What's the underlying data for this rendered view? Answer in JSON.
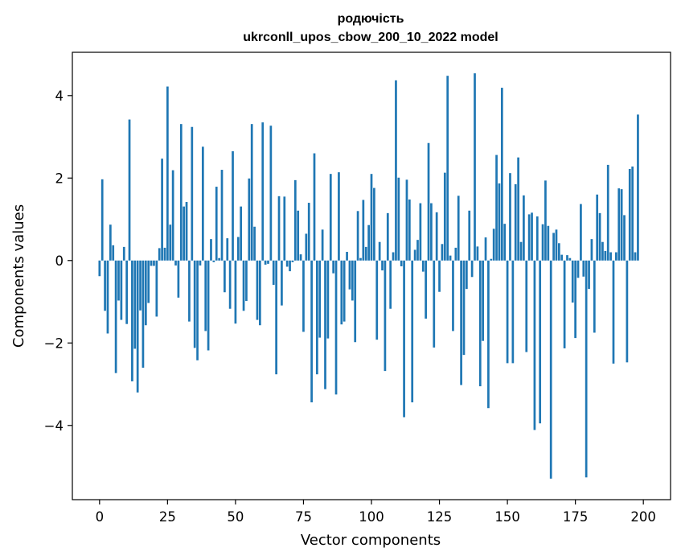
{
  "chart_data": {
    "type": "bar",
    "title_line1": "родючість",
    "title_line2": "ukrconll_upos_cbow_200_10_2022 model",
    "xlabel": "Vector components",
    "ylabel": "Components values",
    "xlim": [
      -10,
      210
    ],
    "ylim": [
      -5.8,
      5.05
    ],
    "xticks": [
      0,
      25,
      50,
      75,
      100,
      125,
      150,
      175,
      200
    ],
    "xtick_labels": [
      "0",
      "25",
      "50",
      "75",
      "100",
      "125",
      "150",
      "175",
      "200"
    ],
    "yticks": [
      -4,
      -2,
      0,
      2,
      4
    ],
    "ytick_labels": [
      "−4",
      "−2",
      "0",
      "2",
      "4"
    ],
    "bar_color": "#1f77b4",
    "values": [
      -0.38,
      1.97,
      -1.22,
      -1.77,
      0.87,
      0.37,
      -2.73,
      -0.97,
      -1.44,
      0.33,
      -1.54,
      3.42,
      -2.93,
      -2.14,
      -3.2,
      -1.21,
      -2.6,
      -1.57,
      -1.03,
      -0.13,
      -0.13,
      -1.36,
      0.3,
      2.47,
      0.31,
      4.22,
      0.87,
      2.19,
      -0.12,
      -0.9,
      3.31,
      1.31,
      1.42,
      -1.48,
      3.24,
      -2.12,
      -2.42,
      -0.12,
      2.76,
      -1.71,
      -2.18,
      0.52,
      -0.04,
      1.79,
      0.06,
      2.2,
      -0.77,
      0.54,
      -1.17,
      2.65,
      -1.53,
      0.57,
      1.31,
      -1.22,
      -0.98,
      1.99,
      3.31,
      0.82,
      -1.44,
      -1.57,
      3.35,
      -0.1,
      -0.08,
      3.27,
      -0.59,
      -2.76,
      1.56,
      -1.09,
      1.55,
      -0.15,
      -0.26,
      -0.04,
      1.95,
      1.21,
      0.15,
      -1.73,
      0.65,
      1.4,
      -3.44,
      2.6,
      -2.76,
      -1.87,
      0.75,
      -3.12,
      -1.89,
      2.1,
      -0.31,
      -3.25,
      2.14,
      -1.55,
      -1.48,
      0.21,
      -0.7,
      -0.97,
      -1.98,
      1.2,
      0.06,
      1.47,
      0.33,
      0.86,
      2.1,
      1.76,
      -1.92,
      0.45,
      -0.24,
      -2.68,
      1.15,
      -1.17,
      0.2,
      4.37,
      2.01,
      -0.14,
      -3.8,
      1.96,
      1.48,
      -3.44,
      0.26,
      0.5,
      1.39,
      -0.27,
      -1.41,
      2.85,
      1.39,
      -2.11,
      1.17,
      -0.76,
      0.4,
      2.13,
      4.48,
      0.12,
      -1.71,
      0.31,
      1.57,
      -3.02,
      -2.29,
      -0.69,
      1.21,
      -0.4,
      4.54,
      0.34,
      -3.05,
      -1.95,
      0.56,
      -3.58,
      0.04,
      0.77,
      2.56,
      1.87,
      4.19,
      0.89,
      -2.49,
      2.12,
      -2.49,
      1.85,
      2.5,
      0.45,
      1.58,
      -2.22,
      1.12,
      1.16,
      -4.11,
      1.07,
      -3.95,
      0.88,
      1.94,
      0.84,
      -5.29,
      0.67,
      0.75,
      0.42,
      0.14,
      -2.13,
      0.13,
      0.06,
      -1.02,
      -1.88,
      -0.42,
      1.37,
      -0.39,
      -5.26,
      -0.69,
      0.52,
      -1.75,
      1.6,
      1.15,
      0.45,
      0.23,
      2.32,
      0.2,
      -2.5,
      0.2,
      1.75,
      1.73,
      1.1,
      -2.47,
      2.22,
      2.28,
      0.2,
      3.54
    ]
  }
}
